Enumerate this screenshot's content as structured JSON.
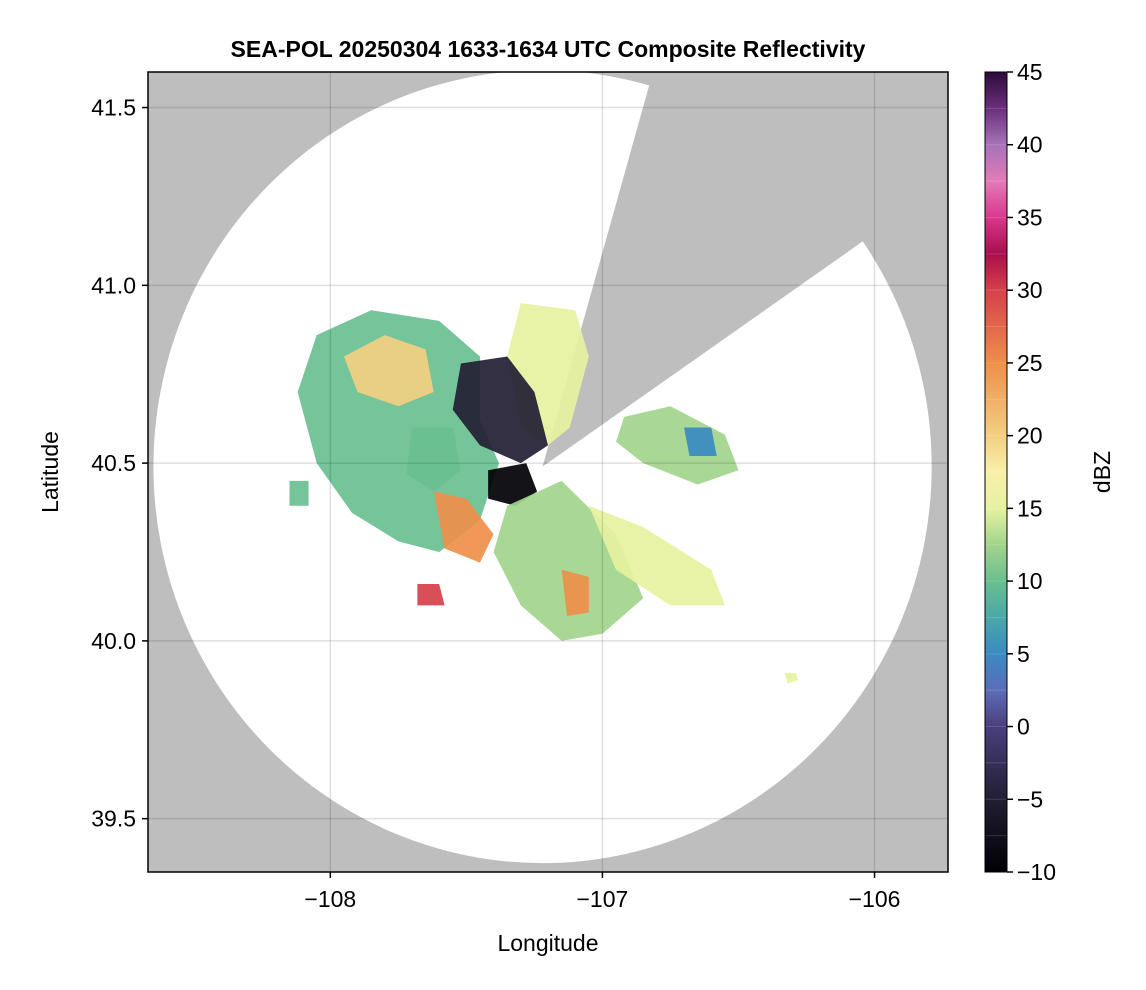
{
  "chart_data": {
    "type": "heatmap",
    "title": "SEA-POL 20250304 1633-1634 UTC Composite Reflectivity",
    "xlabel": "Longitude",
    "ylabel": "Latitude",
    "xlim": [
      -108.67,
      -105.73
    ],
    "ylim": [
      39.35,
      41.6
    ],
    "x_ticks": [
      {
        "value": -108,
        "label": "−108"
      },
      {
        "value": -107,
        "label": "−107"
      },
      {
        "value": -106,
        "label": "−106"
      }
    ],
    "y_ticks": [
      {
        "value": 39.5,
        "label": "39.5"
      },
      {
        "value": 40.0,
        "label": "40.0"
      },
      {
        "value": 40.5,
        "label": "40.5"
      },
      {
        "value": 41.0,
        "label": "41.0"
      },
      {
        "value": 41.5,
        "label": "41.5"
      }
    ],
    "grid": true,
    "background_color": "#bebebe",
    "radar": {
      "center": [
        -107.22,
        40.49
      ],
      "range_lon": 1.43,
      "range_lat": 1.115,
      "blocked_sector_lon_lat": [
        [
          -106.84,
          41.53
        ],
        [
          -106.05,
          41.12
        ]
      ]
    },
    "colorbar": {
      "label": "dBZ",
      "range": [
        -10,
        45
      ],
      "ticks": [
        {
          "value": -10,
          "label": "−10"
        },
        {
          "value": -5,
          "label": "−5"
        },
        {
          "value": 0,
          "label": "0"
        },
        {
          "value": 5,
          "label": "5"
        },
        {
          "value": 10,
          "label": "10"
        },
        {
          "value": 15,
          "label": "15"
        },
        {
          "value": 20,
          "label": "20"
        },
        {
          "value": 25,
          "label": "25"
        },
        {
          "value": 30,
          "label": "30"
        },
        {
          "value": 35,
          "label": "35"
        },
        {
          "value": 40,
          "label": "40"
        },
        {
          "value": 45,
          "label": "45"
        }
      ],
      "stops": [
        {
          "value": -10,
          "color": "#000004"
        },
        {
          "value": -5,
          "color": "#221e33"
        },
        {
          "value": 0,
          "color": "#4a3f7c"
        },
        {
          "value": 2.5,
          "color": "#5c6db8"
        },
        {
          "value": 5,
          "color": "#3a8ac0"
        },
        {
          "value": 7.5,
          "color": "#4aa8a8"
        },
        {
          "value": 10,
          "color": "#6abf90"
        },
        {
          "value": 12.5,
          "color": "#a2d48c"
        },
        {
          "value": 15,
          "color": "#e6f2a0"
        },
        {
          "value": 17.5,
          "color": "#f8f0aa"
        },
        {
          "value": 20,
          "color": "#f3cf82"
        },
        {
          "value": 25,
          "color": "#ee8f4a"
        },
        {
          "value": 30,
          "color": "#d6404a"
        },
        {
          "value": 32.5,
          "color": "#a80f4c"
        },
        {
          "value": 35,
          "color": "#d9388c"
        },
        {
          "value": 37.5,
          "color": "#e37bb8"
        },
        {
          "value": 40,
          "color": "#a673b8"
        },
        {
          "value": 42.5,
          "color": "#6a2f7c"
        },
        {
          "value": 45,
          "color": "#2d0a3a"
        }
      ]
    },
    "echo_regions": [
      {
        "name": "west-cluster",
        "dbz": 12,
        "polygon": [
          [
            -108.05,
            40.86
          ],
          [
            -107.85,
            40.93
          ],
          [
            -107.6,
            40.9
          ],
          [
            -107.45,
            40.8
          ],
          [
            -107.45,
            40.62
          ],
          [
            -107.38,
            40.5
          ],
          [
            -107.45,
            40.34
          ],
          [
            -107.6,
            40.25
          ],
          [
            -107.75,
            40.28
          ],
          [
            -107.92,
            40.36
          ],
          [
            -108.05,
            40.5
          ],
          [
            -108.12,
            40.7
          ]
        ]
      },
      {
        "name": "west-core",
        "dbz": 20,
        "polygon": [
          [
            -107.95,
            40.8
          ],
          [
            -107.8,
            40.86
          ],
          [
            -107.65,
            40.82
          ],
          [
            -107.62,
            40.7
          ],
          [
            -107.75,
            40.66
          ],
          [
            -107.9,
            40.7
          ]
        ]
      },
      {
        "name": "west-green-patch",
        "dbz": 10,
        "polygon": [
          [
            -107.7,
            40.6
          ],
          [
            -107.55,
            40.6
          ],
          [
            -107.52,
            40.48
          ],
          [
            -107.62,
            40.42
          ],
          [
            -107.72,
            40.47
          ]
        ]
      },
      {
        "name": "southwest-band",
        "dbz": 27,
        "polygon": [
          [
            -107.62,
            40.42
          ],
          [
            -107.5,
            40.4
          ],
          [
            -107.4,
            40.3
          ],
          [
            -107.45,
            40.22
          ],
          [
            -107.58,
            40.26
          ]
        ]
      },
      {
        "name": "southwest-core",
        "dbz": 31,
        "polygon": [
          [
            -107.68,
            40.16
          ],
          [
            -107.6,
            40.16
          ],
          [
            -107.58,
            40.1
          ],
          [
            -107.68,
            40.1
          ]
        ]
      },
      {
        "name": "north-band",
        "dbz": 17,
        "polygon": [
          [
            -107.3,
            40.95
          ],
          [
            -107.1,
            40.93
          ],
          [
            -107.05,
            40.8
          ],
          [
            -107.12,
            40.6
          ],
          [
            -107.2,
            40.55
          ],
          [
            -107.3,
            40.6
          ],
          [
            -107.35,
            40.8
          ]
        ]
      },
      {
        "name": "near-radar-weak",
        "dbz": -1,
        "polygon": [
          [
            -107.52,
            40.78
          ],
          [
            -107.35,
            40.8
          ],
          [
            -107.25,
            40.7
          ],
          [
            -107.2,
            40.55
          ],
          [
            -107.3,
            40.5
          ],
          [
            -107.45,
            40.55
          ],
          [
            -107.55,
            40.65
          ]
        ]
      },
      {
        "name": "near-radar-very-weak",
        "dbz": -7,
        "polygon": [
          [
            -107.42,
            40.48
          ],
          [
            -107.28,
            40.5
          ],
          [
            -107.24,
            40.42
          ],
          [
            -107.32,
            40.38
          ],
          [
            -107.42,
            40.4
          ]
        ]
      },
      {
        "name": "south-spokes",
        "dbz": 14,
        "polygon": [
          [
            -107.35,
            40.38
          ],
          [
            -107.15,
            40.45
          ],
          [
            -106.95,
            40.3
          ],
          [
            -106.85,
            40.12
          ],
          [
            -107.0,
            40.02
          ],
          [
            -107.15,
            40.0
          ],
          [
            -107.3,
            40.1
          ],
          [
            -107.4,
            40.25
          ]
        ]
      },
      {
        "name": "south-core",
        "dbz": 26,
        "polygon": [
          [
            -107.15,
            40.2
          ],
          [
            -107.05,
            40.18
          ],
          [
            -107.05,
            40.08
          ],
          [
            -107.13,
            40.07
          ]
        ]
      },
      {
        "name": "southeast-band",
        "dbz": 17,
        "polygon": [
          [
            -107.05,
            40.38
          ],
          [
            -106.85,
            40.32
          ],
          [
            -106.6,
            40.2
          ],
          [
            -106.55,
            40.1
          ],
          [
            -106.75,
            40.1
          ],
          [
            -106.95,
            40.2
          ]
        ]
      },
      {
        "name": "east-cluster",
        "dbz": 13,
        "polygon": [
          [
            -106.92,
            40.63
          ],
          [
            -106.75,
            40.66
          ],
          [
            -106.55,
            40.58
          ],
          [
            -106.5,
            40.48
          ],
          [
            -106.65,
            40.44
          ],
          [
            -106.85,
            40.5
          ],
          [
            -106.95,
            40.56
          ]
        ]
      },
      {
        "name": "east-core",
        "dbz": 7,
        "polygon": [
          [
            -106.7,
            40.6
          ],
          [
            -106.6,
            40.6
          ],
          [
            -106.58,
            40.52
          ],
          [
            -106.68,
            40.52
          ]
        ]
      },
      {
        "name": "far-southeast-cell",
        "dbz": 17,
        "polygon": [
          [
            -106.33,
            39.91
          ],
          [
            -106.29,
            39.91
          ],
          [
            -106.28,
            39.89
          ],
          [
            -106.32,
            39.88
          ]
        ]
      },
      {
        "name": "west-isolated-cell",
        "dbz": 12,
        "polygon": [
          [
            -108.15,
            40.45
          ],
          [
            -108.08,
            40.45
          ],
          [
            -108.08,
            40.38
          ],
          [
            -108.15,
            40.38
          ]
        ]
      }
    ]
  }
}
